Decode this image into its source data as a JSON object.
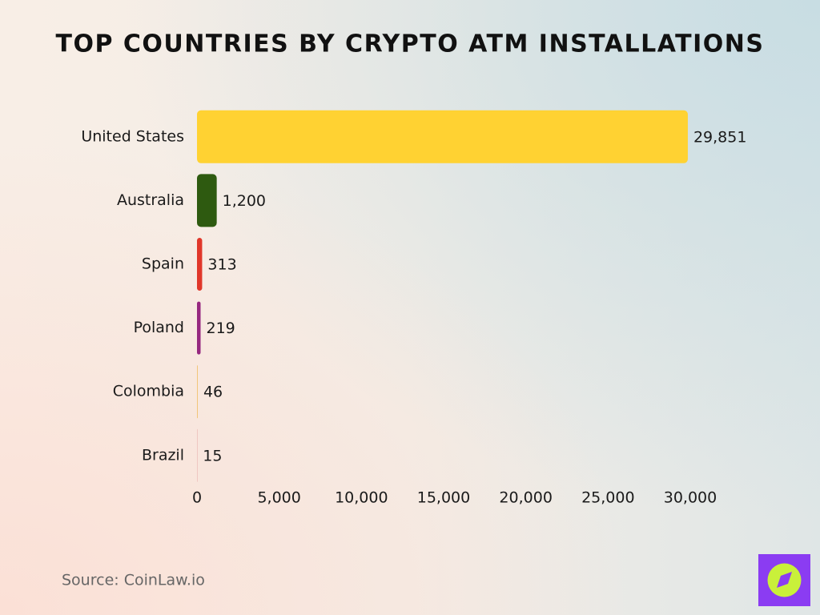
{
  "chart_data": {
    "type": "hbar",
    "title": "Top Countries by Crypto ATM Installations",
    "categories": [
      "United States",
      "Australia",
      "Spain",
      "Poland",
      "Colombia",
      "Brazil"
    ],
    "values": [
      29851,
      1200,
      313,
      219,
      46,
      15
    ],
    "value_labels": [
      "29,851",
      "1,200",
      "313",
      "219",
      "46",
      "15"
    ],
    "colors": [
      "#ffd232",
      "#2e5a10",
      "#e0372a",
      "#96287f",
      "#f2c57a",
      "#efc8c2"
    ],
    "xlim": [
      0,
      30000
    ],
    "xticks": [
      0,
      {
        "value": 5000,
        "label": "5,000"
      },
      {
        "value": 10000,
        "label": "10,000"
      },
      {
        "value": 15000,
        "label": "15,000"
      },
      {
        "value": 20000,
        "label": "20,000"
      },
      {
        "value": 25000,
        "label": "25,000"
      },
      {
        "value": 30000,
        "label": "30,000"
      }
    ],
    "grid": false,
    "source": "Source: CoinLaw.io"
  }
}
